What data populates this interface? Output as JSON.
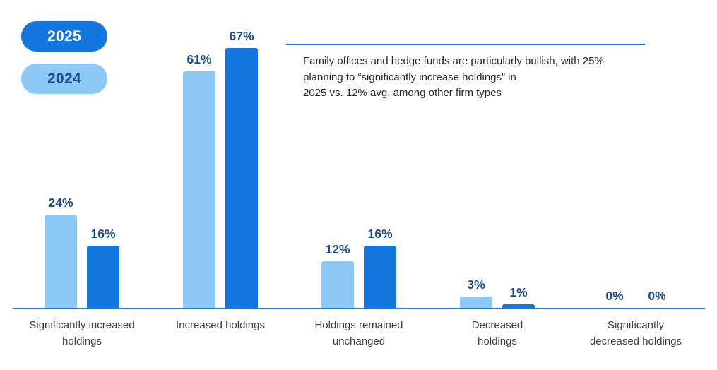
{
  "legend": {
    "items": [
      {
        "label": "2025",
        "bg": "#1477e0",
        "text_color": "#ffffff"
      },
      {
        "label": "2024",
        "bg": "#8cc9f6",
        "text_color": "#1b4c8a"
      }
    ]
  },
  "annotation": {
    "lines": [
      "Family offices and hedge funds are particularly bullish, with 25%",
      "planning to “significantly increase holdings” in",
      "2025 vs. 12% avg. among other firm types"
    ],
    "rule_color": "#1a6fd6"
  },
  "chart_data": {
    "type": "bar",
    "title": "",
    "categories": [
      "Significantly increased\nholdings",
      "Increased holdings",
      "Holdings remained\nunchanged",
      "Decreased\nholdings",
      "Significantly\ndecreased holdings"
    ],
    "series": [
      {
        "name": "2024",
        "color": "#8cc9f6",
        "values": [
          24,
          61,
          12,
          3,
          0
        ]
      },
      {
        "name": "2025",
        "color": "#1477e0",
        "values": [
          16,
          67,
          16,
          1,
          0
        ]
      }
    ],
    "value_suffix": "%",
    "ylim": [
      0,
      72
    ],
    "grid": false,
    "legend_position": "top-left",
    "axis_line_color": "#2b7cd9",
    "value_label_color": "#1b4c8a"
  }
}
